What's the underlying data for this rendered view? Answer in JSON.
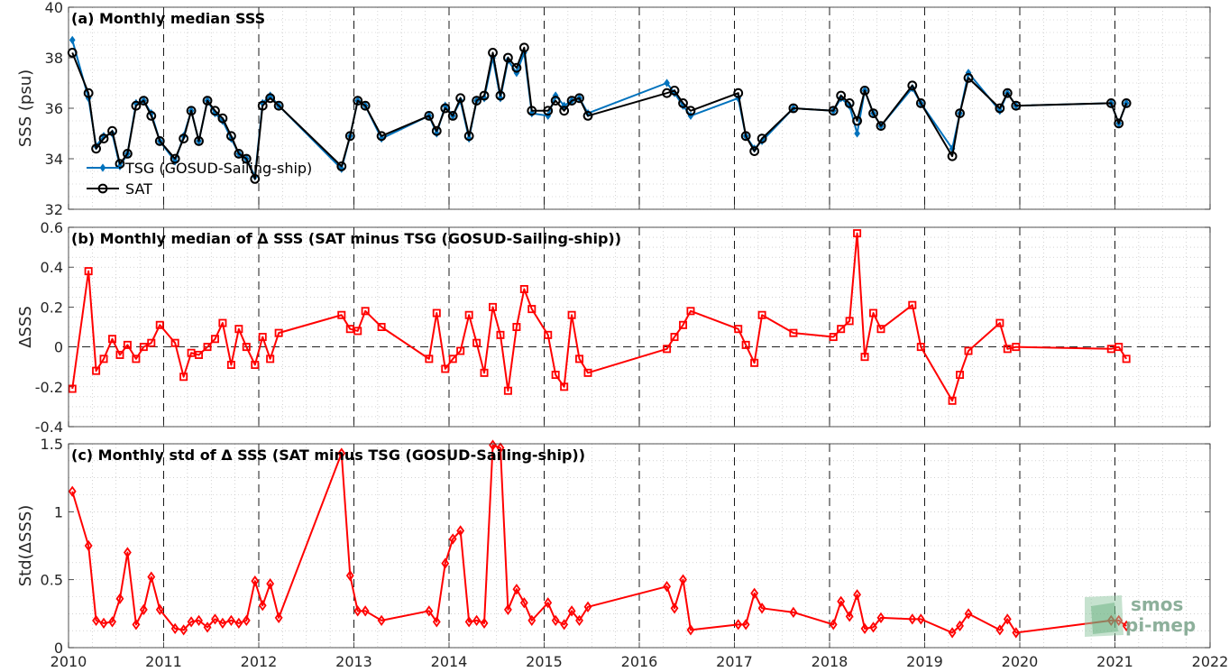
{
  "colors": {
    "tsg": "#0072BD",
    "sat": "#000000",
    "diff": "#FF0000",
    "frame": "#262626",
    "logo": "#7aa38a"
  },
  "logo": {
    "line1": "smos",
    "line2": "pi-mep"
  },
  "chart_data": [
    {
      "type": "line",
      "title": "(a) Monthly median SSS",
      "ylabel": "SSS (psu)",
      "xlim": [
        2010,
        2022
      ],
      "ylim": [
        32,
        40
      ],
      "yticks": [
        32,
        34,
        36,
        38,
        40
      ],
      "grid": true,
      "legend": {
        "placement": "lower-left",
        "entries": [
          "TSG (GOSUD-Sailing-ship)",
          "SAT"
        ]
      },
      "series": [
        {
          "name": "TSG (GOSUD-Sailing-ship)",
          "marker": "diamond",
          "x": [
            2010.04,
            2010.21,
            2010.29,
            2010.37,
            2010.46,
            2010.54,
            2010.62,
            2010.71,
            2010.79,
            2010.87,
            2010.96,
            2011.12,
            2011.21,
            2011.29,
            2011.37,
            2011.46,
            2011.54,
            2011.62,
            2011.71,
            2011.79,
            2011.87,
            2011.96,
            2012.04,
            2012.12,
            2012.21,
            2012.87,
            2012.96,
            2013.04,
            2013.12,
            2013.29,
            2013.79,
            2013.87,
            2013.96,
            2014.04,
            2014.12,
            2014.21,
            2014.29,
            2014.37,
            2014.46,
            2014.54,
            2014.62,
            2014.71,
            2014.79,
            2014.87,
            2015.04,
            2015.12,
            2015.21,
            2015.29,
            2015.37,
            2015.46,
            2016.29,
            2016.37,
            2016.46,
            2016.54,
            2017.04,
            2017.12,
            2017.21,
            2017.29,
            2017.62,
            2018.04,
            2018.12,
            2018.21,
            2018.29,
            2018.37,
            2018.46,
            2018.54,
            2018.87,
            2018.96,
            2019.29,
            2019.37,
            2019.46,
            2019.79,
            2019.87,
            2019.96,
            2020.96,
            2021.04,
            2021.12
          ],
          "values": [
            38.7,
            36.4,
            34.5,
            34.9,
            35.0,
            33.7,
            34.2,
            36.2,
            36.3,
            35.8,
            34.7,
            33.9,
            34.9,
            35.9,
            34.7,
            36.3,
            35.8,
            35.5,
            34.8,
            34.2,
            34.0,
            33.3,
            36.2,
            36.5,
            36.1,
            33.6,
            34.9,
            36.3,
            36.1,
            34.8,
            35.7,
            35.0,
            36.1,
            35.7,
            36.3,
            34.8,
            36.3,
            36.4,
            38.0,
            36.4,
            37.9,
            37.4,
            38.2,
            35.8,
            35.7,
            36.5,
            36.1,
            36.3,
            36.4,
            35.8,
            37.0,
            36.6,
            36.1,
            35.7,
            36.4,
            34.9,
            34.4,
            34.7,
            36.0,
            35.9,
            36.4,
            36.1,
            35.0,
            36.7,
            35.8,
            35.3,
            36.8,
            36.2,
            34.4,
            35.8,
            37.4,
            35.9,
            36.6,
            36.1,
            36.2,
            35.4,
            36.2
          ]
        },
        {
          "name": "SAT",
          "marker": "circle",
          "x": [
            2010.04,
            2010.21,
            2010.29,
            2010.37,
            2010.46,
            2010.54,
            2010.62,
            2010.71,
            2010.79,
            2010.87,
            2010.96,
            2011.12,
            2011.21,
            2011.29,
            2011.37,
            2011.46,
            2011.54,
            2011.62,
            2011.71,
            2011.79,
            2011.87,
            2011.96,
            2012.04,
            2012.12,
            2012.21,
            2012.87,
            2012.96,
            2013.04,
            2013.12,
            2013.29,
            2013.79,
            2013.87,
            2013.96,
            2014.04,
            2014.12,
            2014.21,
            2014.29,
            2014.37,
            2014.46,
            2014.54,
            2014.62,
            2014.71,
            2014.79,
            2014.87,
            2015.04,
            2015.12,
            2015.21,
            2015.29,
            2015.37,
            2015.46,
            2016.29,
            2016.37,
            2016.46,
            2016.54,
            2017.04,
            2017.12,
            2017.21,
            2017.29,
            2017.62,
            2018.04,
            2018.12,
            2018.21,
            2018.29,
            2018.37,
            2018.46,
            2018.54,
            2018.87,
            2018.96,
            2019.29,
            2019.37,
            2019.46,
            2019.79,
            2019.87,
            2019.96,
            2020.96,
            2021.04,
            2021.12
          ],
          "values": [
            38.2,
            36.6,
            34.4,
            34.8,
            35.1,
            33.8,
            34.2,
            36.1,
            36.3,
            35.7,
            34.7,
            34.0,
            34.8,
            35.9,
            34.7,
            36.3,
            35.9,
            35.6,
            34.9,
            34.2,
            34.0,
            33.2,
            36.1,
            36.4,
            36.1,
            33.7,
            34.9,
            36.3,
            36.1,
            34.9,
            35.7,
            35.1,
            36.0,
            35.7,
            36.4,
            34.9,
            36.3,
            36.5,
            38.2,
            36.5,
            38.0,
            37.6,
            38.4,
            35.9,
            35.9,
            36.3,
            35.9,
            36.3,
            36.4,
            35.7,
            36.6,
            36.7,
            36.2,
            35.9,
            36.6,
            34.9,
            34.3,
            34.8,
            36.0,
            35.9,
            36.5,
            36.2,
            35.5,
            36.7,
            35.8,
            35.3,
            36.9,
            36.2,
            34.1,
            35.8,
            37.2,
            36.0,
            36.6,
            36.1,
            36.2,
            35.4,
            36.2
          ]
        }
      ]
    },
    {
      "type": "line",
      "title": "(b) Monthly median of Δ SSS (SAT minus TSG (GOSUD-Sailing-ship))",
      "ylabel": "ΔSSS",
      "xlim": [
        2010,
        2022
      ],
      "ylim": [
        -0.4,
        0.6
      ],
      "yticks": [
        -0.4,
        -0.2,
        0,
        0.2,
        0.4,
        0.6
      ],
      "ytick_labels": [
        "-0.4",
        "-0.2",
        "0",
        "0.2",
        "0.4",
        "0.6"
      ],
      "grid": true,
      "zero_line": true,
      "series": [
        {
          "marker": "square",
          "x": [
            2010.04,
            2010.21,
            2010.29,
            2010.37,
            2010.46,
            2010.54,
            2010.62,
            2010.71,
            2010.79,
            2010.87,
            2010.96,
            2011.12,
            2011.21,
            2011.29,
            2011.37,
            2011.46,
            2011.54,
            2011.62,
            2011.71,
            2011.79,
            2011.87,
            2011.96,
            2012.04,
            2012.12,
            2012.21,
            2012.87,
            2012.96,
            2013.04,
            2013.12,
            2013.29,
            2013.79,
            2013.87,
            2013.96,
            2014.04,
            2014.12,
            2014.21,
            2014.29,
            2014.37,
            2014.46,
            2014.54,
            2014.62,
            2014.71,
            2014.79,
            2014.87,
            2015.04,
            2015.12,
            2015.21,
            2015.29,
            2015.37,
            2015.46,
            2016.29,
            2016.37,
            2016.46,
            2016.54,
            2017.04,
            2017.12,
            2017.21,
            2017.29,
            2017.62,
            2018.04,
            2018.12,
            2018.21,
            2018.29,
            2018.37,
            2018.46,
            2018.54,
            2018.87,
            2018.96,
            2019.29,
            2019.37,
            2019.46,
            2019.79,
            2019.87,
            2019.96,
            2020.96,
            2021.04,
            2021.12
          ],
          "values": [
            -0.21,
            0.38,
            -0.12,
            -0.06,
            0.04,
            -0.04,
            0.01,
            -0.06,
            0.0,
            0.02,
            0.11,
            0.02,
            -0.15,
            -0.03,
            -0.04,
            0.0,
            0.04,
            0.12,
            -0.09,
            0.09,
            0.0,
            -0.09,
            0.05,
            -0.06,
            0.07,
            0.16,
            0.09,
            0.08,
            0.18,
            0.1,
            -0.06,
            0.17,
            -0.11,
            -0.06,
            -0.02,
            0.16,
            0.02,
            -0.13,
            0.2,
            0.06,
            -0.22,
            0.1,
            0.29,
            0.19,
            0.06,
            -0.14,
            -0.2,
            0.16,
            -0.06,
            -0.13,
            -0.01,
            0.05,
            0.11,
            0.18,
            0.09,
            0.01,
            -0.08,
            0.16,
            0.07,
            0.05,
            0.09,
            0.13,
            0.57,
            -0.05,
            0.17,
            0.09,
            0.21,
            0.0,
            -0.27,
            -0.14,
            -0.02,
            0.12,
            -0.01,
            0.0,
            -0.01,
            0.0,
            -0.06
          ]
        }
      ]
    },
    {
      "type": "line",
      "title": "(c) Monthly std of Δ SSS (SAT minus TSG (GOSUD-Sailing-ship))",
      "ylabel": "Std(ΔSSS)",
      "xlabel": "",
      "xlim": [
        2010,
        2022
      ],
      "ylim": [
        0,
        1.5
      ],
      "yticks": [
        0,
        0.5,
        1,
        1.5
      ],
      "ytick_labels": [
        "0",
        "0.5",
        "1",
        "1.5"
      ],
      "xticks": [
        2010,
        2011,
        2012,
        2013,
        2014,
        2015,
        2016,
        2017,
        2018,
        2019,
        2020,
        2021,
        2022
      ],
      "grid": true,
      "series": [
        {
          "marker": "diamond",
          "x": [
            2010.04,
            2010.21,
            2010.29,
            2010.37,
            2010.46,
            2010.54,
            2010.62,
            2010.71,
            2010.79,
            2010.87,
            2010.96,
            2011.12,
            2011.21,
            2011.29,
            2011.37,
            2011.46,
            2011.54,
            2011.62,
            2011.71,
            2011.79,
            2011.87,
            2011.96,
            2012.04,
            2012.12,
            2012.21,
            2012.87,
            2012.96,
            2013.04,
            2013.12,
            2013.29,
            2013.79,
            2013.87,
            2013.96,
            2014.04,
            2014.12,
            2014.21,
            2014.29,
            2014.37,
            2014.46,
            2014.54,
            2014.62,
            2014.71,
            2014.79,
            2014.87,
            2015.04,
            2015.12,
            2015.21,
            2015.29,
            2015.37,
            2015.46,
            2016.29,
            2016.37,
            2016.46,
            2016.54,
            2017.04,
            2017.12,
            2017.21,
            2017.29,
            2017.62,
            2018.04,
            2018.12,
            2018.21,
            2018.29,
            2018.37,
            2018.46,
            2018.54,
            2018.87,
            2018.96,
            2019.29,
            2019.37,
            2019.46,
            2019.79,
            2019.87,
            2019.96,
            2020.96,
            2021.04,
            2021.12
          ],
          "values": [
            1.15,
            0.75,
            0.2,
            0.18,
            0.19,
            0.36,
            0.7,
            0.17,
            0.28,
            0.52,
            0.28,
            0.14,
            0.13,
            0.19,
            0.2,
            0.15,
            0.21,
            0.18,
            0.2,
            0.18,
            0.2,
            0.49,
            0.31,
            0.47,
            0.22,
            1.43,
            0.53,
            0.27,
            0.27,
            0.2,
            0.27,
            0.19,
            0.62,
            0.8,
            0.86,
            0.19,
            0.2,
            0.18,
            1.49,
            1.47,
            0.28,
            0.43,
            0.33,
            0.2,
            0.33,
            0.2,
            0.17,
            0.27,
            0.2,
            0.3,
            0.45,
            0.29,
            0.5,
            0.13,
            0.17,
            0.17,
            0.4,
            0.29,
            0.26,
            0.17,
            0.34,
            0.23,
            0.39,
            0.14,
            0.15,
            0.22,
            0.21,
            0.21,
            0.11,
            0.16,
            0.25,
            0.13,
            0.21,
            0.11,
            0.2,
            0.2,
            0.16
          ]
        }
      ]
    }
  ]
}
